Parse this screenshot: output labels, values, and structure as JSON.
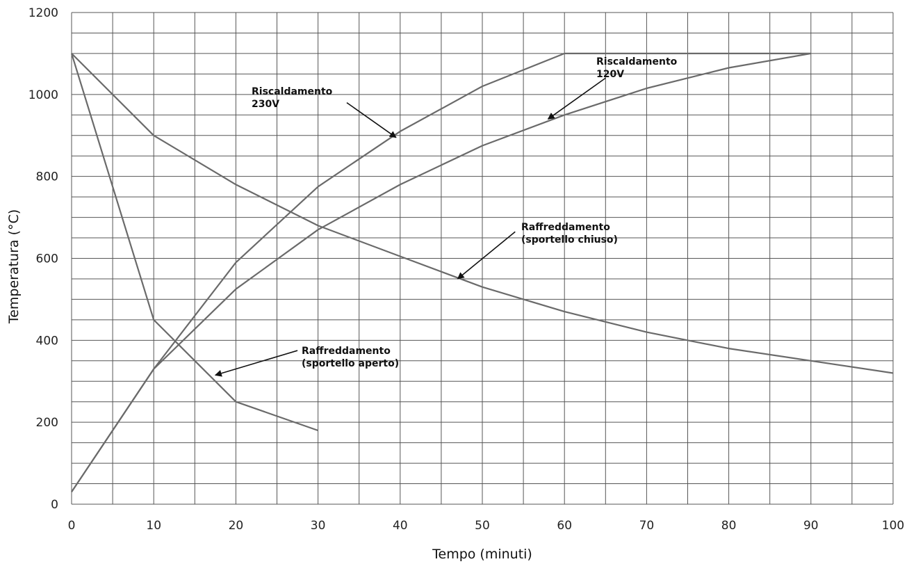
{
  "chart_data": {
    "type": "line",
    "xlabel": "Tempo (minuti)",
    "ylabel": "Temperatura (°C)",
    "xlim": [
      0,
      100
    ],
    "ylim": [
      0,
      1200
    ],
    "x_ticks": [
      0,
      10,
      20,
      30,
      40,
      50,
      60,
      70,
      80,
      90,
      100
    ],
    "y_ticks": [
      0,
      200,
      400,
      600,
      800,
      1000,
      1200
    ],
    "grid": true,
    "x_minor_step": 5,
    "y_minor_step": 50,
    "line_color": "#6a6a6a",
    "series": [
      {
        "x": [
          0,
          10,
          20,
          30,
          40,
          50,
          60,
          90
        ],
        "y": [
          30,
          330,
          590,
          775,
          910,
          1020,
          1100,
          1100
        ]
      },
      {
        "x": [
          0,
          10,
          20,
          30,
          40,
          50,
          60,
          70,
          80,
          90
        ],
        "y": [
          30,
          330,
          525,
          670,
          780,
          875,
          950,
          1015,
          1065,
          1100
        ]
      },
      {
        "x": [
          0,
          10,
          20,
          30,
          40,
          50,
          60,
          70,
          80,
          90,
          100
        ],
        "y": [
          1100,
          900,
          780,
          680,
          605,
          530,
          470,
          420,
          380,
          350,
          320
        ]
      },
      {
        "x": [
          0,
          10,
          20,
          30
        ],
        "y": [
          1100,
          450,
          250,
          180
        ]
      }
    ],
    "annotations": [
      {
        "lines": [
          "Riscaldamento",
          "230V"
        ],
        "tip": [
          39.5,
          895
        ],
        "tail": [
          33.5,
          980
        ]
      },
      {
        "lines": [
          "Riscaldamento",
          "120V"
        ],
        "tip": [
          58,
          940
        ],
        "tail": [
          65,
          1040
        ]
      },
      {
        "lines": [
          "Raffreddamento",
          "(sportello chiuso)"
        ],
        "tip": [
          47,
          550
        ],
        "tail": [
          54,
          665
        ]
      },
      {
        "lines": [
          "Raffreddamento",
          "(sportello aperto)"
        ],
        "tip": [
          17.5,
          315
        ],
        "tail": [
          27.5,
          375
        ]
      }
    ]
  }
}
